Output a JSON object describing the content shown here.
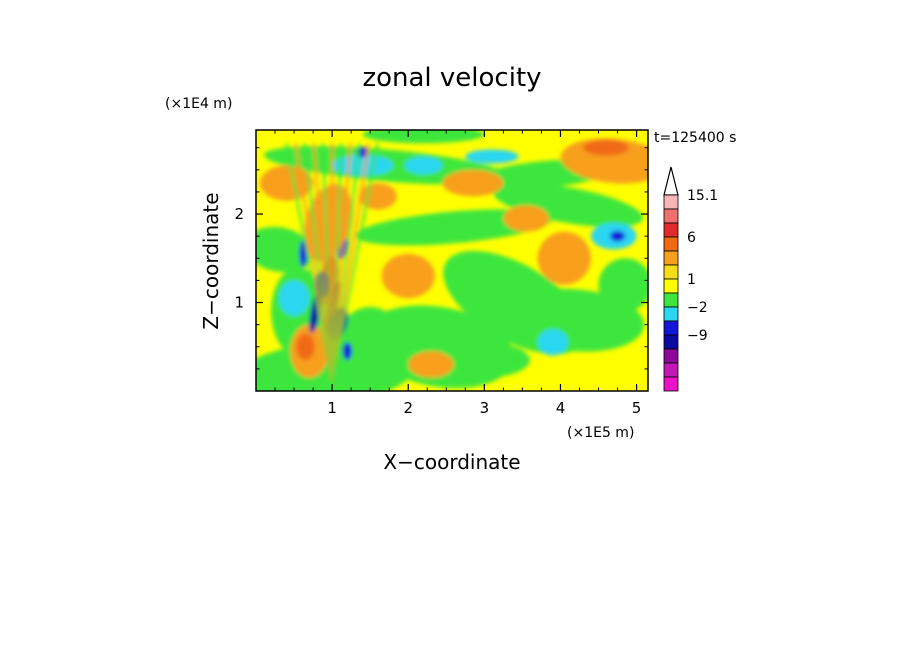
{
  "chart_data": {
    "type": "heatmap",
    "title": "zonal velocity",
    "time_label": "t=125400 s",
    "xlabel": "X−coordinate",
    "ylabel": "Z−coordinate",
    "x_multiplier": "(×1E5 m)",
    "y_multiplier": "(×1E4 m)",
    "xlim": [
      0,
      5.15
    ],
    "ylim": [
      0,
      2.95
    ],
    "x_ticks": [
      1,
      2,
      3,
      4,
      5
    ],
    "y_ticks": [
      1,
      2
    ],
    "colorbar": {
      "labels": [
        "15.1",
        "6",
        "1",
        "−2",
        "−9"
      ],
      "label_values": [
        15.1,
        6,
        1,
        -2,
        -9
      ],
      "levels_top_to_bottom": [
        {
          "color": "#f7b6b6"
        },
        {
          "color": "#f07070"
        },
        {
          "color": "#e22a2a"
        },
        {
          "color": "#f06a12"
        },
        {
          "color": "#f89f1e"
        },
        {
          "color": "#f5de18"
        },
        {
          "color": "#ffff00"
        },
        {
          "color": "#3ce63c"
        },
        {
          "color": "#2ad6f0"
        },
        {
          "color": "#1515d8"
        },
        {
          "color": "#0a0aa0"
        },
        {
          "color": "#8c0a9a"
        },
        {
          "color": "#c418b4"
        },
        {
          "color": "#ec12c8"
        }
      ]
    },
    "features": [
      {
        "x": 0.85,
        "z": 1.2,
        "value": -9
      },
      {
        "x": 1.05,
        "z": 0.75,
        "value": -9
      },
      {
        "x": 1.4,
        "z": 2.7,
        "value": -9
      },
      {
        "x": 4.75,
        "z": 1.75,
        "value": -9
      },
      {
        "x": 0.95,
        "z": 1.3,
        "value": 6
      },
      {
        "x": 0.65,
        "z": 0.5,
        "value": 6
      },
      {
        "x": 4.6,
        "z": 2.75,
        "value": 6
      }
    ]
  }
}
